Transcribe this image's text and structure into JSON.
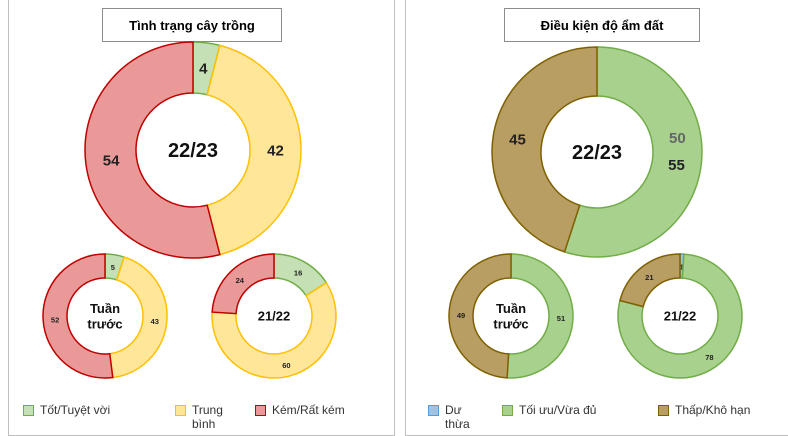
{
  "chart_data": [
    {
      "type": "donut",
      "title": "Tình trạng cây trồng",
      "center_label": "22/23",
      "categories": [
        "Tốt/Tuyệt vời",
        "Trung bình",
        "Kém/Rất kém"
      ],
      "values": [
        4,
        42,
        54
      ]
    },
    {
      "type": "donut",
      "center_label": "Tuần trước",
      "categories": [
        "Tốt/Tuyệt vời",
        "Trung bình",
        "Kém/Rất kém"
      ],
      "values": [
        5,
        43,
        52
      ]
    },
    {
      "type": "donut",
      "center_label": "21/22",
      "categories": [
        "Tốt/Tuyệt vời",
        "Trung bình",
        "Kém/Rất kém"
      ],
      "values": [
        16,
        60,
        24
      ]
    },
    {
      "type": "donut",
      "title": "Điều kiện độ ẩm đất",
      "center_label": "22/23",
      "categories": [
        "Dư thừa",
        "Tối ưu/Vừa đủ",
        "Thấp/Khô hạn"
      ],
      "values": [
        0,
        55,
        45
      ],
      "value_labels": [
        "-",
        "55",
        "45"
      ],
      "ghost_label": "50"
    },
    {
      "type": "donut",
      "center_label": "Tuần trước",
      "categories": [
        "Dư thừa",
        "Tối ưu/Vừa đủ",
        "Thấp/Khô hạn"
      ],
      "values": [
        0,
        51,
        49
      ],
      "value_labels": [
        "-",
        "51",
        "49"
      ]
    },
    {
      "type": "donut",
      "center_label": "21/22",
      "categories": [
        "Dư thừa",
        "Tối ưu/Vừa đủ",
        "Thấp/Khô hạn"
      ],
      "values": [
        1,
        78,
        21
      ]
    }
  ],
  "left": {
    "title": "Tình trạng cây trồng",
    "legend": [
      "Tốt/Tuyệt vời",
      "Trung bình",
      "Kém/Rất kém"
    ]
  },
  "right": {
    "title": "Điều kiện độ ẩm đất",
    "legend": [
      "Dư thừa",
      "Tối ưu/Vừa đủ",
      "Thấp/Khô hạn"
    ]
  },
  "colors": {
    "left": [
      {
        "fill": "#c5e0b4",
        "stroke": "#70ad47"
      },
      {
        "fill": "#ffe699",
        "stroke": "#ffc000"
      },
      {
        "fill": "#ea9999",
        "stroke": "#c00000"
      }
    ],
    "right": [
      {
        "fill": "#9dc3e6",
        "stroke": "#5b9bd5"
      },
      {
        "fill": "#a9d18e",
        "stroke": "#70ad47"
      },
      {
        "fill": "#b89e63",
        "stroke": "#7f6000"
      }
    ]
  }
}
